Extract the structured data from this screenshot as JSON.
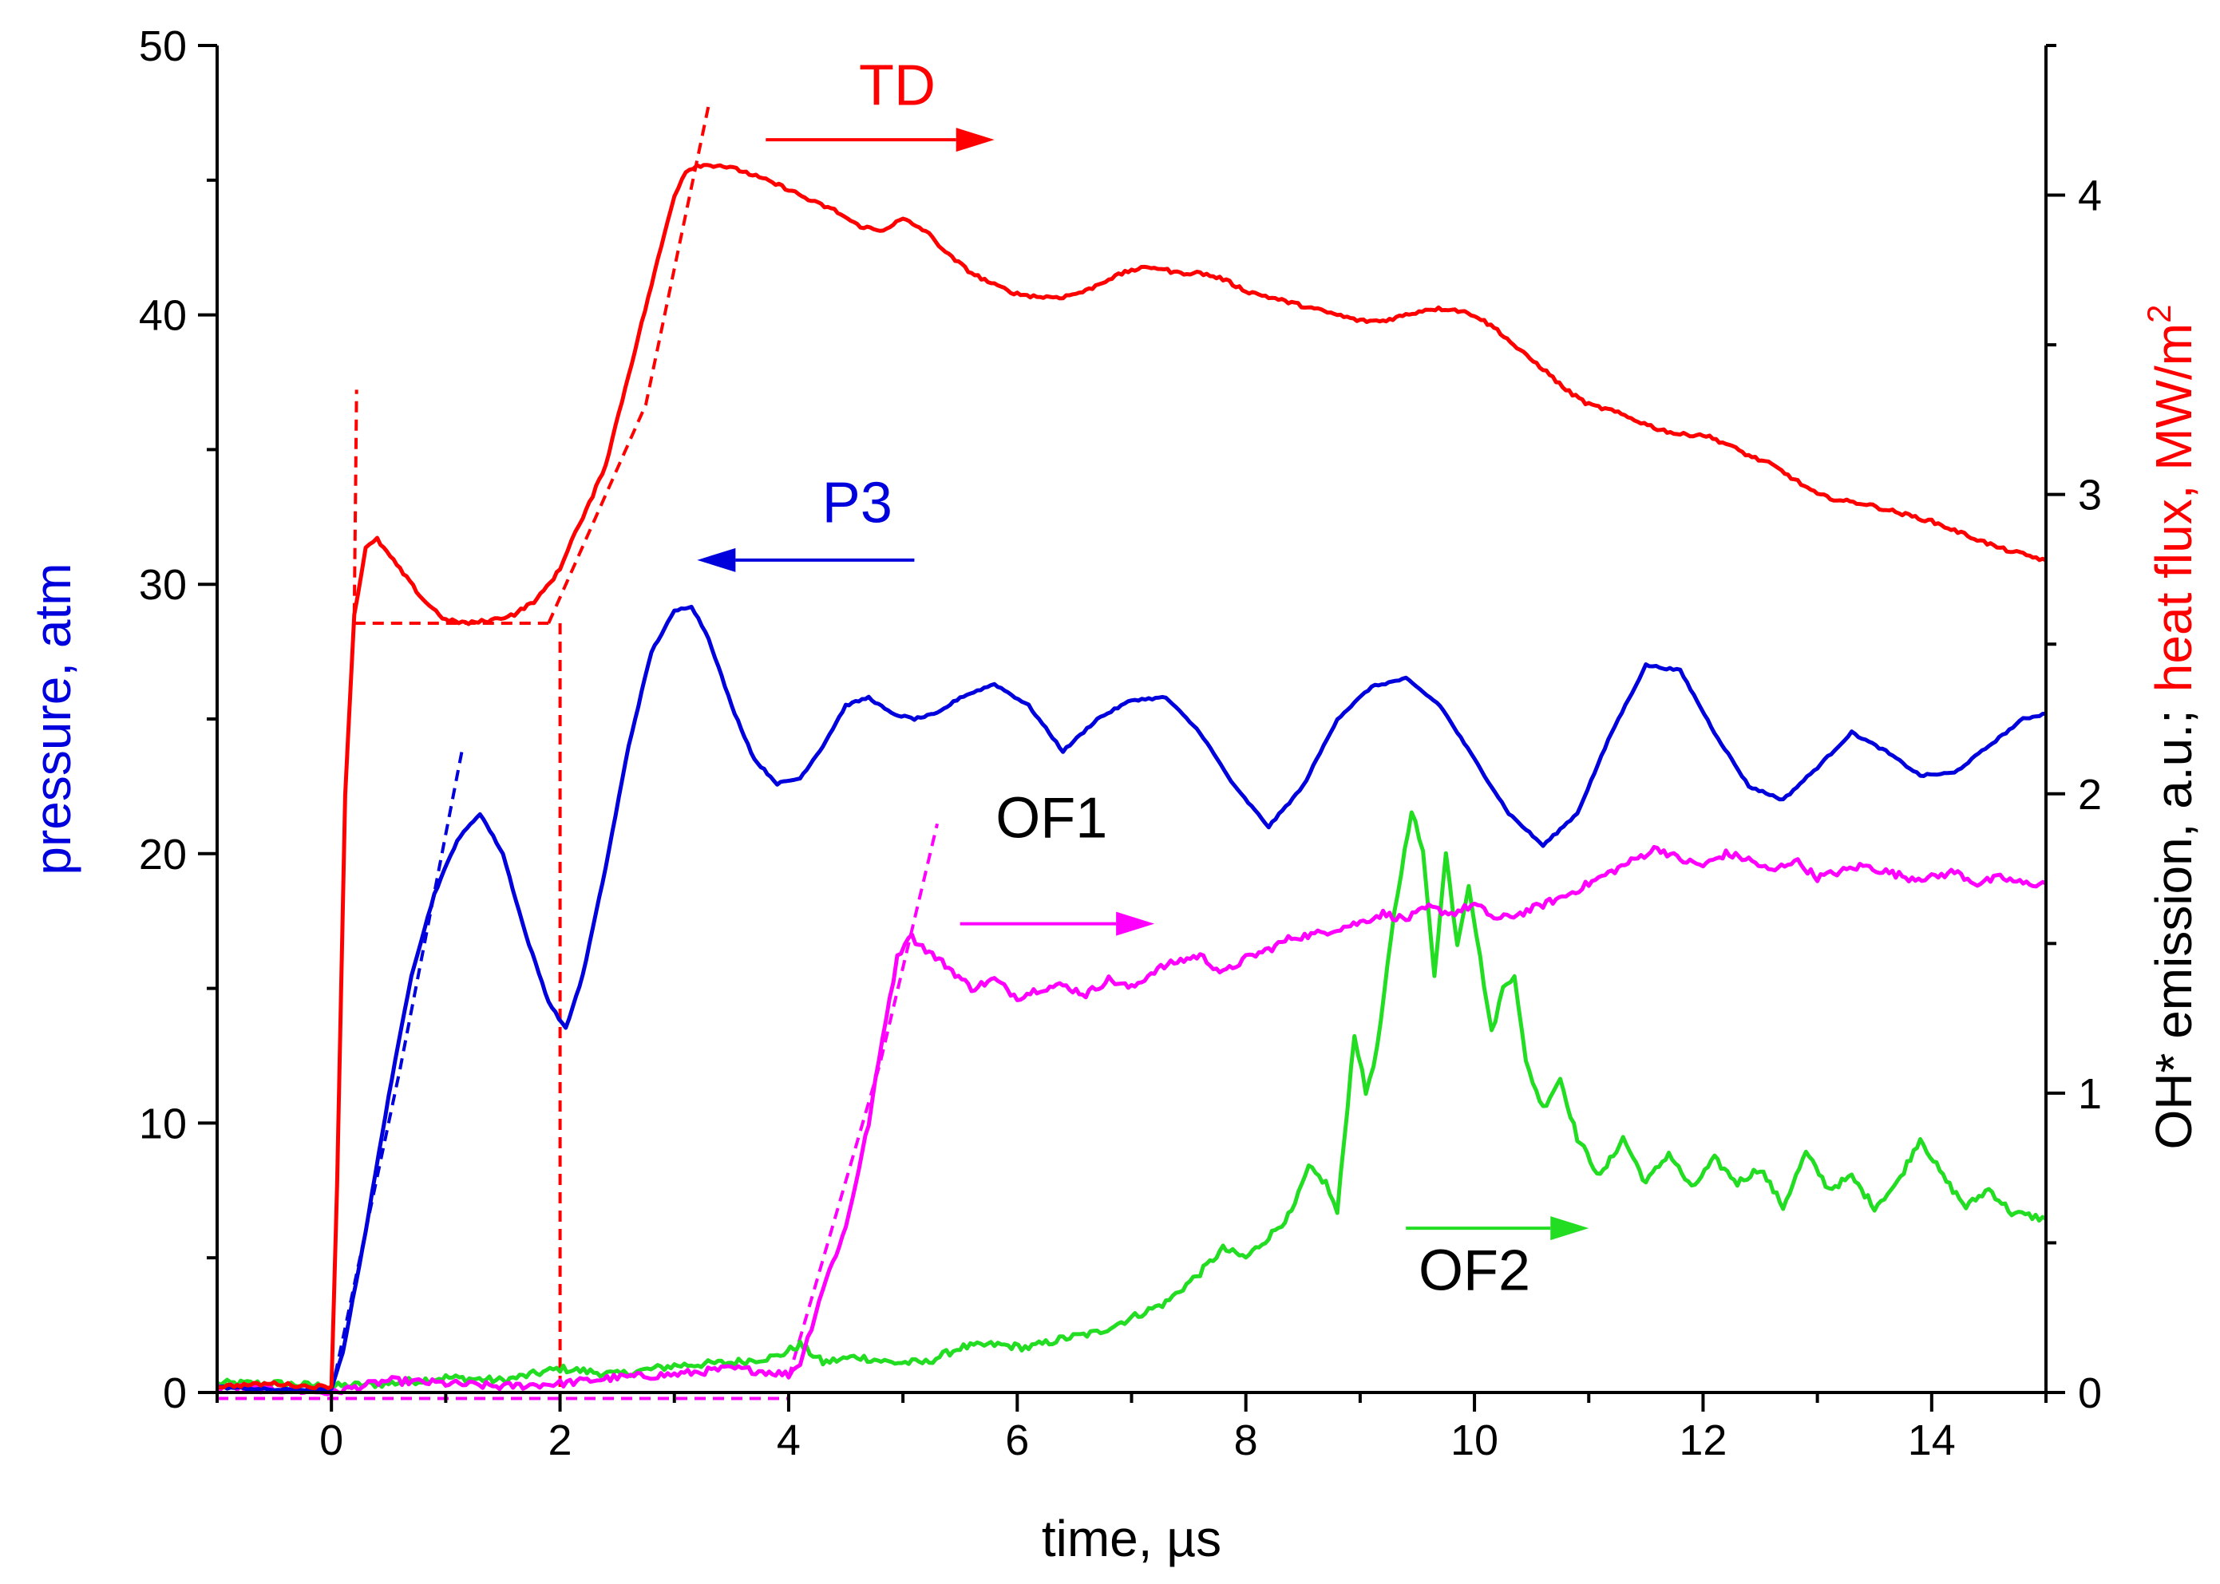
{
  "chart_data": {
    "type": "line",
    "title": "",
    "xlabel": "time, µs",
    "ylabel_left": "pressure, atm",
    "ylabel_right_parts": [
      {
        "text": "OH* emission, a.u.;",
        "color": "#000000"
      },
      {
        "text": "heat flux, MW/m",
        "color": "#ff0000"
      },
      {
        "text": "2",
        "color": "#ff0000",
        "superscript": true
      }
    ],
    "xlim": [
      -1,
      15
    ],
    "ylim_left": [
      0,
      50
    ],
    "ylim_right": [
      0,
      4.5
    ],
    "x_ticks": [
      0,
      2,
      4,
      6,
      8,
      10,
      12,
      14
    ],
    "x_tick_labels": [
      "0",
      "2",
      "4",
      "6",
      "8",
      "10",
      "12",
      "14"
    ],
    "y_left_ticks": [
      0,
      10,
      20,
      30,
      40,
      50
    ],
    "y_left_tick_labels": [
      "0",
      "10",
      "20",
      "30",
      "40",
      "50"
    ],
    "y_right_ticks": [
      0,
      1,
      2,
      3,
      4
    ],
    "y_right_tick_labels": [
      "0",
      "1",
      "2",
      "3",
      "4"
    ],
    "grid": false,
    "series": [
      {
        "name": "TD",
        "axis": "right",
        "color": "#ff0000",
        "style": "solid",
        "x": [
          -1,
          -0.5,
          -0.2,
          0,
          0.05,
          0.12,
          0.2,
          0.3,
          0.4,
          0.6,
          0.8,
          1.0,
          1.2,
          1.4,
          1.6,
          1.8,
          2.0,
          2.1,
          2.2,
          2.4,
          2.6,
          2.8,
          3.0,
          3.1,
          3.2,
          3.4,
          3.6,
          3.8,
          4.0,
          4.2,
          4.4,
          4.6,
          4.8,
          5.0,
          5.2,
          5.4,
          5.6,
          5.8,
          6.0,
          6.2,
          6.4,
          6.6,
          6.8,
          7.0,
          7.2,
          7.4,
          7.6,
          7.8,
          8.0,
          8.2,
          8.4,
          8.6,
          8.8,
          9.0,
          9.2,
          9.4,
          9.6,
          9.8,
          10.0,
          10.2,
          10.4,
          10.6,
          10.8,
          11.0,
          11.2,
          11.4,
          11.6,
          11.8,
          12.0,
          12.2,
          12.4,
          12.6,
          12.8,
          13.0,
          13.2,
          13.4,
          13.6,
          13.8,
          14.0,
          14.2,
          14.4,
          14.6,
          14.8,
          15.0
        ],
        "y": [
          0.02,
          0.03,
          0.02,
          0.02,
          0.7,
          2.0,
          2.6,
          2.82,
          2.85,
          2.75,
          2.65,
          2.58,
          2.57,
          2.58,
          2.6,
          2.65,
          2.75,
          2.85,
          2.92,
          3.1,
          3.4,
          3.7,
          4.0,
          4.08,
          4.1,
          4.1,
          4.08,
          4.05,
          4.02,
          3.98,
          3.95,
          3.9,
          3.88,
          3.92,
          3.88,
          3.8,
          3.74,
          3.7,
          3.67,
          3.66,
          3.66,
          3.68,
          3.72,
          3.75,
          3.76,
          3.74,
          3.74,
          3.72,
          3.68,
          3.66,
          3.64,
          3.62,
          3.6,
          3.58,
          3.58,
          3.6,
          3.62,
          3.62,
          3.6,
          3.55,
          3.48,
          3.42,
          3.35,
          3.3,
          3.28,
          3.25,
          3.22,
          3.2,
          3.2,
          3.17,
          3.13,
          3.1,
          3.05,
          3.0,
          2.98,
          2.97,
          2.95,
          2.93,
          2.91,
          2.88,
          2.85,
          2.82,
          2.8,
          2.78
        ]
      },
      {
        "name": "P3",
        "axis": "left",
        "color": "#0000dd",
        "style": "solid",
        "x": [
          -1,
          -0.5,
          -0.2,
          0,
          0.1,
          0.3,
          0.5,
          0.7,
          0.9,
          1.1,
          1.3,
          1.5,
          1.7,
          1.9,
          2.05,
          2.2,
          2.4,
          2.6,
          2.8,
          3.0,
          3.15,
          3.3,
          3.5,
          3.7,
          3.9,
          4.1,
          4.3,
          4.5,
          4.7,
          4.9,
          5.1,
          5.3,
          5.5,
          5.8,
          6.1,
          6.4,
          6.7,
          7.0,
          7.3,
          7.6,
          7.9,
          8.2,
          8.5,
          8.8,
          9.1,
          9.4,
          9.7,
          10.0,
          10.3,
          10.6,
          10.9,
          11.2,
          11.5,
          11.8,
          12.1,
          12.4,
          12.7,
          13.0,
          13.3,
          13.6,
          13.9,
          14.2,
          14.5,
          14.8,
          15.0
        ],
        "y": [
          0.2,
          0.1,
          0.1,
          0.1,
          1.5,
          6.0,
          11.0,
          15.5,
          18.5,
          20.5,
          21.5,
          20.0,
          17.0,
          14.5,
          13.5,
          15.5,
          19.5,
          24.0,
          27.5,
          29.0,
          29.2,
          28.0,
          25.5,
          23.5,
          22.6,
          22.8,
          24.0,
          25.5,
          25.8,
          25.2,
          25.0,
          25.2,
          25.8,
          26.3,
          25.5,
          23.8,
          25.0,
          25.7,
          25.8,
          24.5,
          22.5,
          21.0,
          22.5,
          25.0,
          26.2,
          26.5,
          25.5,
          23.5,
          21.5,
          20.3,
          21.5,
          24.5,
          27.0,
          26.8,
          24.5,
          22.5,
          22.0,
          23.2,
          24.5,
          23.8,
          22.9,
          23.0,
          24.0,
          25.0,
          25.2
        ]
      },
      {
        "name": "OF1",
        "axis": "right",
        "color": "#ff00ff",
        "style": "solid",
        "x": [
          -1,
          -0.5,
          0,
          0.5,
          1.0,
          1.5,
          2.0,
          2.5,
          3.0,
          3.5,
          3.8,
          4.0,
          4.1,
          4.2,
          4.3,
          4.5,
          4.7,
          4.85,
          4.95,
          5.05,
          5.2,
          5.4,
          5.6,
          5.8,
          6.0,
          6.2,
          6.4,
          6.6,
          6.8,
          7.0,
          7.2,
          7.4,
          7.6,
          7.8,
          8.0,
          8.2,
          8.4,
          8.6,
          8.8,
          9.0,
          9.2,
          9.4,
          9.6,
          9.8,
          10.0,
          10.2,
          10.4,
          10.6,
          10.8,
          11.0,
          11.2,
          11.4,
          11.6,
          11.8,
          12.0,
          12.2,
          12.4,
          12.6,
          12.8,
          13.0,
          13.2,
          13.4,
          13.6,
          13.8,
          14.0,
          14.2,
          14.4,
          14.6,
          14.8,
          15.0
        ],
        "y": [
          0.02,
          0.01,
          0.0,
          0.04,
          0.03,
          0.02,
          0.03,
          0.05,
          0.06,
          0.08,
          0.07,
          0.06,
          0.1,
          0.22,
          0.35,
          0.55,
          0.9,
          1.25,
          1.45,
          1.53,
          1.48,
          1.42,
          1.35,
          1.38,
          1.32,
          1.35,
          1.36,
          1.33,
          1.38,
          1.35,
          1.41,
          1.44,
          1.46,
          1.4,
          1.45,
          1.48,
          1.52,
          1.53,
          1.55,
          1.57,
          1.6,
          1.58,
          1.62,
          1.6,
          1.63,
          1.58,
          1.6,
          1.63,
          1.66,
          1.7,
          1.74,
          1.78,
          1.82,
          1.78,
          1.76,
          1.8,
          1.78,
          1.74,
          1.78,
          1.72,
          1.74,
          1.76,
          1.74,
          1.72,
          1.72,
          1.74,
          1.7,
          1.72,
          1.7,
          1.7
        ]
      },
      {
        "name": "OF2",
        "axis": "right",
        "color": "#22dd22",
        "style": "solid",
        "x": [
          -1,
          -0.5,
          0,
          0.5,
          1.0,
          1.5,
          2.0,
          2.5,
          3.0,
          3.5,
          3.9,
          4.1,
          4.3,
          4.6,
          4.9,
          5.2,
          5.5,
          5.8,
          6.1,
          6.4,
          6.7,
          7.0,
          7.3,
          7.6,
          7.8,
          8.0,
          8.2,
          8.4,
          8.55,
          8.7,
          8.8,
          8.95,
          9.05,
          9.15,
          9.3,
          9.45,
          9.55,
          9.65,
          9.75,
          9.85,
          9.95,
          10.05,
          10.15,
          10.25,
          10.35,
          10.45,
          10.6,
          10.75,
          10.9,
          11.1,
          11.3,
          11.5,
          11.7,
          11.9,
          12.1,
          12.3,
          12.5,
          12.7,
          12.9,
          13.1,
          13.3,
          13.5,
          13.7,
          13.9,
          14.1,
          14.3,
          14.5,
          14.7,
          15.0
        ],
        "y": [
          0.03,
          0.03,
          0.02,
          0.03,
          0.05,
          0.04,
          0.08,
          0.06,
          0.09,
          0.1,
          0.12,
          0.16,
          0.1,
          0.12,
          0.1,
          0.1,
          0.15,
          0.16,
          0.15,
          0.18,
          0.2,
          0.25,
          0.3,
          0.4,
          0.48,
          0.45,
          0.52,
          0.6,
          0.75,
          0.7,
          0.6,
          1.2,
          1.0,
          1.15,
          1.6,
          1.95,
          1.8,
          1.4,
          1.8,
          1.5,
          1.7,
          1.45,
          1.2,
          1.35,
          1.4,
          1.1,
          0.95,
          1.05,
          0.85,
          0.72,
          0.85,
          0.7,
          0.8,
          0.68,
          0.78,
          0.7,
          0.75,
          0.62,
          0.8,
          0.68,
          0.72,
          0.62,
          0.7,
          0.85,
          0.72,
          0.62,
          0.68,
          0.6,
          0.58
        ]
      }
    ],
    "dashed_lines": [
      {
        "color": "#ff0000",
        "axis": "right",
        "x": [
          0.2,
          0.22
        ],
        "y": [
          2.6,
          3.35
        ]
      },
      {
        "color": "#ff0000",
        "axis": "right",
        "x": [
          0.2,
          1.9
        ],
        "y": [
          2.57,
          2.57
        ]
      },
      {
        "color": "#ff0000",
        "axis": "right",
        "x": [
          2.0,
          2.0
        ],
        "y": [
          2.57,
          0.0
        ]
      },
      {
        "color": "#ff0000",
        "axis": "right",
        "x": [
          1.9,
          2.75,
          3.3
        ],
        "y": [
          2.57,
          3.3,
          4.3
        ]
      },
      {
        "color": "#0000dd",
        "axis": "left",
        "x": [
          0.0,
          0.6,
          1.15
        ],
        "y": [
          0.0,
          12.0,
          24.0
        ]
      },
      {
        "color": "#ff00ff",
        "axis": "right",
        "x": [
          -1.0,
          4.0
        ],
        "y": [
          -0.02,
          -0.02
        ]
      },
      {
        "color": "#ff00ff",
        "axis": "right",
        "x": [
          4.0,
          4.8,
          5.3
        ],
        "y": [
          0.05,
          1.1,
          1.9
        ]
      }
    ],
    "annotations": [
      {
        "text": "TD",
        "color": "#ff0000",
        "arrow": "right",
        "x": 4.95,
        "y_left": 47.8,
        "arrow_from": 3.8,
        "arrow_to": 5.8,
        "arrow_y_left": 46.5
      },
      {
        "text": "P3",
        "color": "#0000dd",
        "arrow": "left",
        "x": 4.6,
        "y_left": 32.3,
        "arrow_from": 5.1,
        "arrow_to": 3.2,
        "arrow_y_left": 30.9
      },
      {
        "text": "OF1",
        "color": "#000000",
        "arrow": "right",
        "arrow_color": "#ff00ff",
        "x": 6.3,
        "y_left": 20.6,
        "arrow_from": 5.5,
        "arrow_to": 7.2,
        "arrow_y_left": 17.4
      },
      {
        "text": "OF2",
        "color": "#000000",
        "arrow": "right",
        "arrow_color": "#22dd22",
        "x": 10.0,
        "y_left": 3.8,
        "arrow_from": 9.4,
        "arrow_to": 11.0,
        "arrow_y_left": 6.1
      }
    ]
  }
}
